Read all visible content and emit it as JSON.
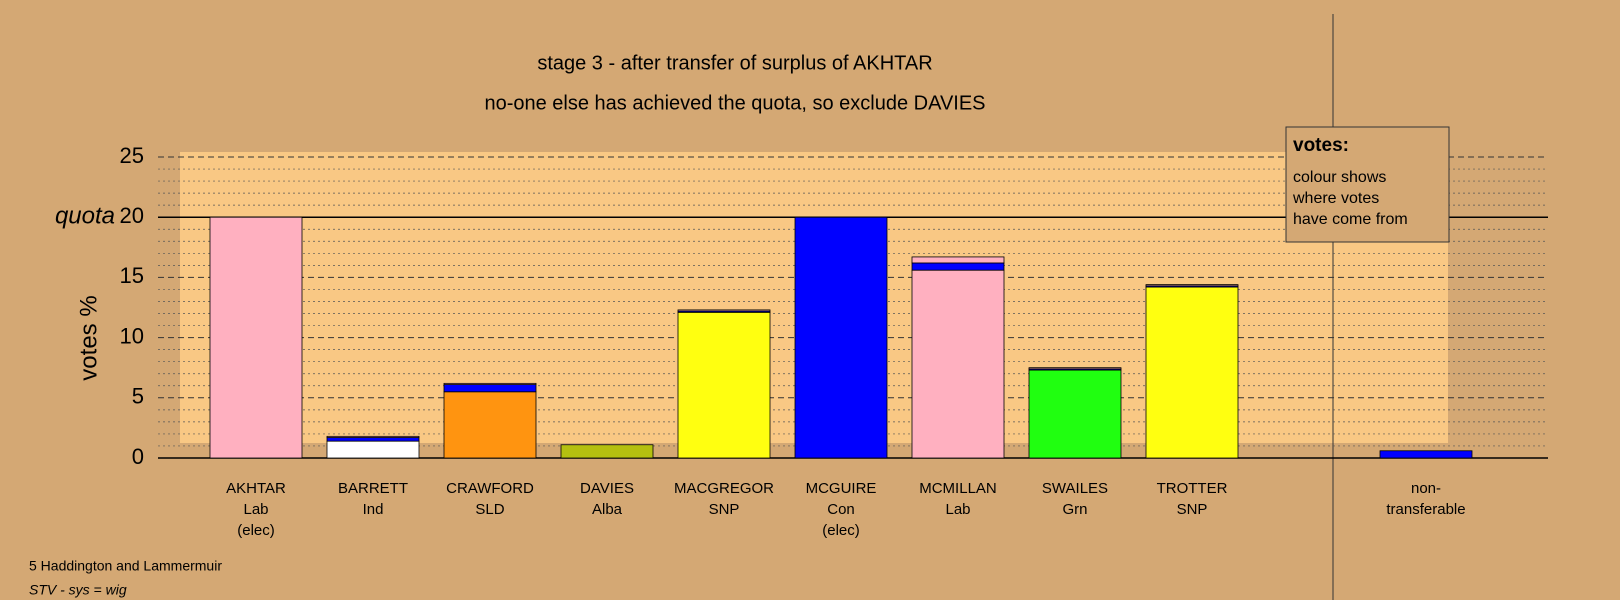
{
  "chart_data": {
    "type": "bar",
    "title": "stage 3 - after transfer of surplus of AKHTAR",
    "subtitle": "no-one else has achieved the quota, so exclude DAVIES",
    "y_label": "votes %",
    "quota": 20,
    "quota_label": "quota",
    "categories": [
      [
        "AKHTAR",
        "Lab",
        "(elec)"
      ],
      [
        "BARRETT",
        "Ind"
      ],
      [
        "CRAWFORD",
        "SLD"
      ],
      [
        "DAVIES",
        "Alba"
      ],
      [
        "MACGREGOR",
        "SNP"
      ],
      [
        "MCGUIRE",
        "Con",
        "(elec)"
      ],
      [
        "MCMILLAN",
        "Lab"
      ],
      [
        "SWAILES",
        "Grn"
      ],
      [
        "TROTTER",
        "SNP"
      ],
      [
        "non-",
        "transferable"
      ]
    ],
    "series": [
      {
        "colors": [
          "#ffb0c0",
          "#ffffff",
          "#ff9410",
          "#b4c010",
          "#ffff10",
          "#0000ff",
          "#ffb0c0",
          "#20ff10",
          "#ffff10",
          "#0000ff"
        ],
        "values": [
          20,
          1.4,
          5.5,
          1.1,
          12.1,
          20,
          15.6,
          7.3,
          14.2,
          0
        ]
      },
      {
        "color": "#0000ff",
        "values": [
          0,
          0.3,
          0.6,
          0,
          0.1,
          0,
          0.6,
          0.1,
          0.1,
          0.6
        ]
      },
      {
        "color": "#ffb0c0",
        "values": [
          0,
          0.1,
          0.1,
          0,
          0.1,
          0,
          0.5,
          0.1,
          0.1,
          0
        ]
      }
    ],
    "ylim": [
      0,
      25
    ],
    "yticks": [
      0,
      5,
      10,
      15,
      20,
      25
    ],
    "legend": {
      "title": "votes:",
      "lines": [
        "colour shows",
        "where votes",
        "have come from"
      ]
    },
    "footer": [
      "5 Haddington and Lammermuir",
      "STV - sys = wig"
    ]
  }
}
